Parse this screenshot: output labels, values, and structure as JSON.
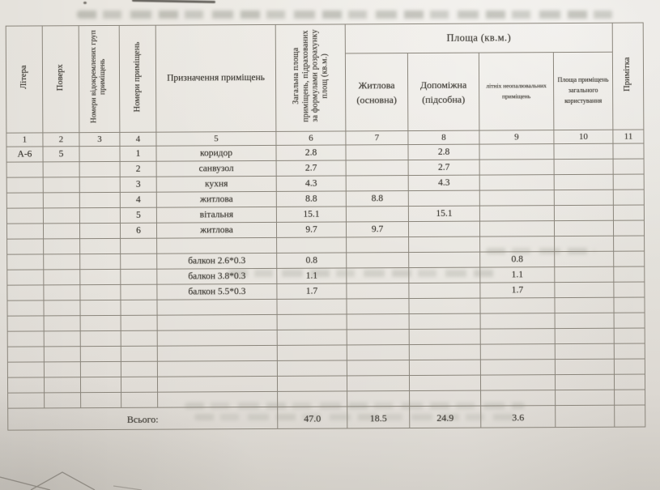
{
  "table": {
    "header": {
      "litera": "Літера",
      "poverh": "Поверх",
      "groups": "Номери відокремлених груп приміщень",
      "rooms": "Номери приміщень",
      "purpose": "Призначення приміщень",
      "total_area": "Загальна площа приміщень, підрахованих за формулами розрахунку площ (кв.м.)",
      "area_group": "Площа (кв.м.)",
      "living": "Житлова (основна)",
      "auxiliary": "Допоміжна (підсобна)",
      "summer": "літніх неопалювальних приміщень",
      "common": "Площа приміщень загального користування",
      "note": "Примітка"
    },
    "column_numbers": [
      "1",
      "2",
      "3",
      "4",
      "5",
      "6",
      "7",
      "8",
      "9",
      "10",
      "11"
    ],
    "rows": [
      [
        "А-6",
        "5",
        "",
        "1",
        "коридор",
        "2.8",
        "",
        "2.8",
        "",
        "",
        ""
      ],
      [
        "",
        "",
        "",
        "2",
        "санвузол",
        "2.7",
        "",
        "2.7",
        "",
        "",
        ""
      ],
      [
        "",
        "",
        "",
        "3",
        "кухня",
        "4.3",
        "",
        "4.3",
        "",
        "",
        ""
      ],
      [
        "",
        "",
        "",
        "4",
        "житлова",
        "8.8",
        "8.8",
        "",
        "",
        "",
        ""
      ],
      [
        "",
        "",
        "",
        "5",
        "вітальня",
        "15.1",
        "",
        "15.1",
        "",
        "",
        ""
      ],
      [
        "",
        "",
        "",
        "6",
        "житлова",
        "9.7",
        "9.7",
        "",
        "",
        "",
        ""
      ],
      [
        "",
        "",
        "",
        "",
        "",
        "",
        "",
        "",
        "",
        "",
        ""
      ],
      [
        "",
        "",
        "",
        "",
        "балкон 2.6*0.3",
        "0.8",
        "",
        "",
        "0.8",
        "",
        ""
      ],
      [
        "",
        "",
        "",
        "",
        "балкон 3.8*0.3",
        "1.1",
        "",
        "",
        "1.1",
        "",
        ""
      ],
      [
        "",
        "",
        "",
        "",
        "балкон 5.5*0.3",
        "1.7",
        "",
        "",
        "1.7",
        "",
        ""
      ],
      [
        "",
        "",
        "",
        "",
        "",
        "",
        "",
        "",
        "",
        "",
        ""
      ],
      [
        "",
        "",
        "",
        "",
        "",
        "",
        "",
        "",
        "",
        "",
        ""
      ],
      [
        "",
        "",
        "",
        "",
        "",
        "",
        "",
        "",
        "",
        "",
        ""
      ],
      [
        "",
        "",
        "",
        "",
        "",
        "",
        "",
        "",
        "",
        "",
        ""
      ],
      [
        "",
        "",
        "",
        "",
        "",
        "",
        "",
        "",
        "",
        "",
        ""
      ],
      [
        "",
        "",
        "",
        "",
        "",
        "",
        "",
        "",
        "",
        "",
        ""
      ],
      [
        "",
        "",
        "",
        "",
        "",
        "",
        "",
        "",
        "",
        "",
        ""
      ]
    ],
    "totals": {
      "label": "Всього:",
      "total_area": "47.0",
      "living": "18.5",
      "auxiliary": "24.9",
      "summer": "3.6"
    }
  }
}
